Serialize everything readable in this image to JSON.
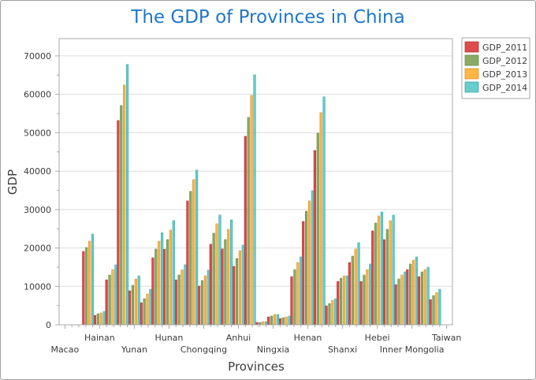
{
  "chart_data": {
    "type": "bar",
    "title": "The GDP of Provinces in China",
    "xlabel": "Provinces",
    "ylabel": "GDP",
    "ylim": [
      0,
      74500
    ],
    "yticks": [
      0,
      10000,
      20000,
      30000,
      40000,
      50000,
      60000,
      70000
    ],
    "ytick_labels": [
      "0",
      "10000",
      "20000",
      "30000",
      "40000",
      "50000",
      "60000",
      "70000"
    ],
    "grid": true,
    "legend_position": "top-right",
    "categories": [
      "Macao",
      "",
      "",
      "Hainan",
      "",
      "",
      "Yunan",
      "",
      "",
      "Hunan",
      "",
      "",
      "Chongqing",
      "",
      "",
      "Anhui",
      "",
      "",
      "Ningxia",
      "",
      "",
      "Henan",
      "",
      "",
      "Shanxi",
      "",
      "",
      "Hebei",
      "",
      "",
      "Inner Mongolia",
      "",
      "",
      "Taiwan"
    ],
    "series": [
      {
        "name": "GDP_2011",
        "color": "#dd4b4b",
        "stroke": "#b83232",
        "values": [
          0,
          0,
          19100,
          2460,
          11700,
          53180,
          8830,
          5750,
          17450,
          19660,
          11710,
          32260,
          10070,
          20960,
          19730,
          15210,
          49070,
          620,
          2050,
          1640,
          12530,
          26900,
          45380,
          4930,
          11290,
          16220,
          11290,
          24440,
          22180,
          10470,
          14370,
          12530,
          6570,
          0
        ]
      },
      {
        "name": "GDP_2012",
        "color": "#8aaa66",
        "stroke": "#6a8a48",
        "values": [
          0,
          0,
          20120,
          2870,
          12940,
          57080,
          10270,
          6780,
          19700,
          22190,
          12950,
          34730,
          11510,
          23840,
          22190,
          17260,
          53990,
          620,
          2260,
          1850,
          14370,
          29570,
          49900,
          5540,
          12110,
          17860,
          12940,
          26490,
          24850,
          11910,
          15810,
          13760,
          7600,
          0
        ]
      },
      {
        "name": "GDP_2013",
        "color": "#fbb645",
        "stroke": "#d9922a",
        "values": [
          0,
          0,
          21770,
          3080,
          14370,
          62420,
          11910,
          8010,
          21740,
          24660,
          14320,
          37810,
          12740,
          26300,
          24860,
          19320,
          59740,
          820,
          2670,
          2050,
          16220,
          32240,
          55240,
          6370,
          12730,
          19710,
          14370,
          28340,
          27100,
          12940,
          16840,
          14370,
          8420,
          0
        ]
      },
      {
        "name": "GDP_2014",
        "color": "#66cccc",
        "stroke": "#3fa9a9",
        "values": [
          0,
          0,
          23610,
          3490,
          15600,
          67760,
          12730,
          9240,
          23990,
          27120,
          15620,
          40270,
          14180,
          28560,
          27330,
          20750,
          65080,
          820,
          2670,
          2260,
          17660,
          34910,
          59340,
          6780,
          12730,
          21360,
          15810,
          29360,
          28540,
          13760,
          17660,
          14990,
          9240,
          0
        ]
      }
    ]
  }
}
